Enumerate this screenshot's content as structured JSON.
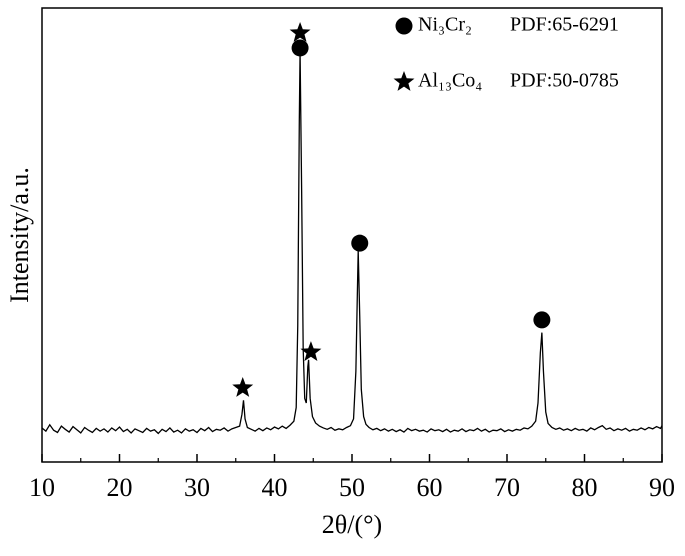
{
  "chart_data": {
    "type": "line",
    "xlabel": "2θ/(°)",
    "ylabel": "Intensity/a.u.",
    "xlim": [
      10,
      90
    ],
    "ylim": [
      0,
      100
    ],
    "xticks": [
      10,
      20,
      30,
      40,
      50,
      60,
      70,
      80,
      90
    ],
    "xminorticks": [
      15,
      25,
      35,
      45,
      55,
      65,
      75,
      85
    ],
    "series": [
      {
        "color": "#000000",
        "x": [
          10,
          10.5,
          11,
          11.5,
          12,
          12.5,
          13,
          13.5,
          14,
          14.5,
          15,
          15.5,
          16,
          16.5,
          17,
          17.5,
          18,
          18.5,
          19,
          19.5,
          20,
          20.5,
          21,
          21.5,
          22,
          22.5,
          23,
          23.5,
          24,
          24.5,
          25,
          25.5,
          26,
          26.5,
          27,
          27.5,
          28,
          28.5,
          29,
          29.5,
          30,
          30.5,
          31,
          31.5,
          32,
          32.5,
          33,
          33.5,
          34,
          34.5,
          35,
          35.5,
          35.8,
          36,
          36.2,
          36.5,
          37,
          37.5,
          38,
          38.5,
          39,
          39.5,
          40,
          40.5,
          41,
          41.5,
          42,
          42.5,
          42.8,
          43,
          43.2,
          43.3,
          43.5,
          43.7,
          43.9,
          44.1,
          44.3,
          44.4,
          44.6,
          44.9,
          45.3,
          45.8,
          46.3,
          46.8,
          47.3,
          47.8,
          48.3,
          48.8,
          49.3,
          49.8,
          50.2,
          50.5,
          50.7,
          50.8,
          51,
          51.2,
          51.5,
          51.8,
          52.2,
          52.7,
          53.2,
          53.7,
          54.2,
          54.7,
          55.2,
          55.7,
          56.2,
          56.7,
          57.2,
          57.7,
          58.2,
          58.7,
          59.2,
          59.7,
          60.2,
          60.7,
          61.2,
          61.7,
          62.2,
          62.7,
          63.2,
          63.7,
          64.2,
          64.7,
          65.2,
          65.7,
          66.2,
          66.7,
          67.2,
          67.7,
          68.2,
          68.7,
          69.2,
          69.7,
          70.2,
          70.7,
          71.2,
          71.7,
          72.2,
          72.7,
          73.2,
          73.7,
          74,
          74.3,
          74.5,
          74.7,
          75,
          75.3,
          75.8,
          76.3,
          76.8,
          77.3,
          77.8,
          78.3,
          78.8,
          79.3,
          79.8,
          80.3,
          80.8,
          81.3,
          81.8,
          82.3,
          82.8,
          83.3,
          83.8,
          84.3,
          84.8,
          85.3,
          85.8,
          86.3,
          86.8,
          87.3,
          87.8,
          88.3,
          88.8,
          89.3,
          89.8,
          90
        ],
        "values": [
          7.5,
          6.8,
          8.2,
          7.0,
          6.5,
          7.9,
          7.2,
          6.6,
          7.8,
          7.1,
          6.4,
          7.6,
          7.0,
          6.5,
          7.4,
          6.8,
          7.3,
          6.6,
          7.5,
          6.9,
          7.7,
          6.7,
          7.2,
          6.4,
          7.3,
          6.9,
          6.5,
          7.4,
          6.8,
          7.1,
          6.3,
          7.2,
          6.7,
          7.5,
          6.6,
          7.0,
          6.4,
          7.3,
          6.8,
          7.1,
          6.5,
          7.4,
          6.9,
          7.6,
          6.7,
          7.2,
          7.0,
          7.5,
          6.8,
          7.3,
          7.6,
          7.9,
          10.5,
          13.6,
          9.5,
          7.6,
          7.2,
          6.8,
          7.4,
          6.9,
          7.5,
          7.1,
          7.7,
          7.3,
          7.9,
          7.4,
          8.1,
          9.0,
          12,
          30,
          75,
          90.5,
          60,
          25,
          14,
          13,
          21,
          22.5,
          14,
          10,
          8.6,
          7.9,
          7.5,
          7.2,
          7.6,
          7.0,
          7.3,
          7.1,
          7.6,
          8.0,
          9.5,
          20,
          38,
          46.5,
          32,
          16,
          10,
          8.3,
          7.6,
          7.1,
          7.4,
          6.9,
          7.3,
          6.8,
          7.2,
          6.7,
          7.1,
          6.6,
          7.4,
          6.9,
          7.2,
          6.8,
          7.0,
          6.6,
          7.3,
          6.9,
          7.1,
          6.7,
          7.2,
          6.6,
          7.0,
          6.8,
          7.3,
          6.7,
          7.1,
          6.9,
          7.4,
          6.8,
          7.2,
          6.6,
          7.0,
          6.9,
          7.3,
          6.7,
          7.1,
          6.8,
          7.2,
          7.0,
          7.5,
          7.3,
          7.9,
          9.0,
          13,
          24,
          28.5,
          20,
          11,
          8.5,
          7.6,
          7.2,
          7.5,
          7.0,
          7.3,
          6.9,
          7.4,
          7.0,
          7.2,
          6.8,
          7.5,
          7.1,
          7.6,
          8.0,
          7.2,
          7.5,
          6.9,
          7.3,
          7.0,
          7.4,
          6.8,
          7.2,
          7.0,
          7.5,
          7.1,
          7.6,
          7.3,
          7.8,
          7.4,
          8.0
        ]
      }
    ],
    "peak_markers": [
      {
        "symbol": "star",
        "x": 43.3,
        "y": 94.5
      },
      {
        "symbol": "circle",
        "x": 43.3,
        "y": 91.2
      },
      {
        "symbol": "star",
        "x": 35.9,
        "y": 16.3
      },
      {
        "symbol": "star",
        "x": 44.7,
        "y": 24.2
      },
      {
        "symbol": "circle",
        "x": 51.0,
        "y": 48.2
      },
      {
        "symbol": "circle",
        "x": 74.5,
        "y": 31.3
      }
    ],
    "legend": [
      {
        "symbol": "circle",
        "name": "Ni₃Cr₂",
        "pdf": "PDF:65-6291"
      },
      {
        "symbol": "star",
        "name": "Al₁₃Co₄",
        "pdf": "PDF:50-0785"
      }
    ]
  }
}
